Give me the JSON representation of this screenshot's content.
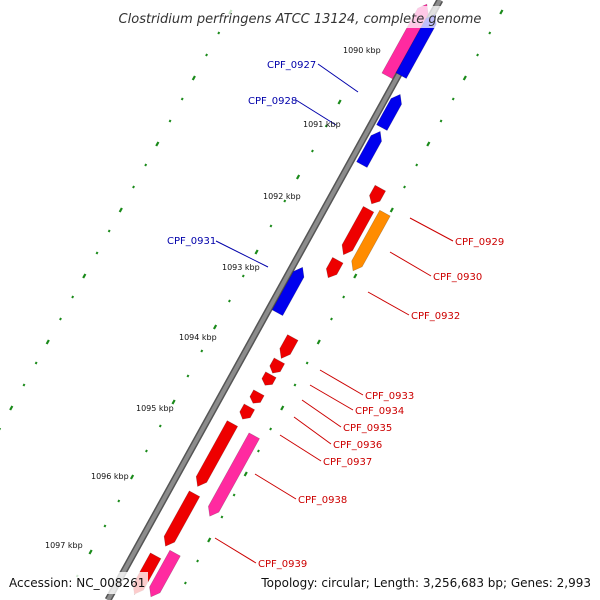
{
  "title": "Clostridium perfringens ATCC 13124, complete genome",
  "footer": {
    "accession": "Accession: NC_008261",
    "topology": "Topology: circular; Length: 3,256,683 bp; Genes: 2,993"
  },
  "scale_labels": [
    "1090 kbp",
    "1091 kbp",
    "1092 kbp",
    "1093 kbp",
    "1094 kbp",
    "1095 kbp",
    "1096 kbp",
    "1097 kbp"
  ],
  "colors": {
    "backbone": "#8c8c8c",
    "forward_gene": "#0000ee",
    "reverse_gene": "#ee0000",
    "rna_gene": "#ff2aa0",
    "highlight_gene": "#ff8c00",
    "forward_label": "#0000aa",
    "reverse_label": "#cc0000",
    "tick": "#1a8a1a"
  },
  "gene_labels": [
    {
      "id": "CPF_0927",
      "strand": "forward"
    },
    {
      "id": "CPF_0928",
      "strand": "forward"
    },
    {
      "id": "CPF_0931",
      "strand": "forward"
    },
    {
      "id": "CPF_0929",
      "strand": "reverse"
    },
    {
      "id": "CPF_0930",
      "strand": "reverse"
    },
    {
      "id": "CPF_0932",
      "strand": "reverse"
    },
    {
      "id": "CPF_0933",
      "strand": "reverse"
    },
    {
      "id": "CPF_0934",
      "strand": "reverse"
    },
    {
      "id": "CPF_0935",
      "strand": "reverse"
    },
    {
      "id": "CPF_0936",
      "strand": "reverse"
    },
    {
      "id": "CPF_0937",
      "strand": "reverse"
    },
    {
      "id": "CPF_0938",
      "strand": "reverse"
    },
    {
      "id": "CPF_0939",
      "strand": "reverse"
    }
  ]
}
